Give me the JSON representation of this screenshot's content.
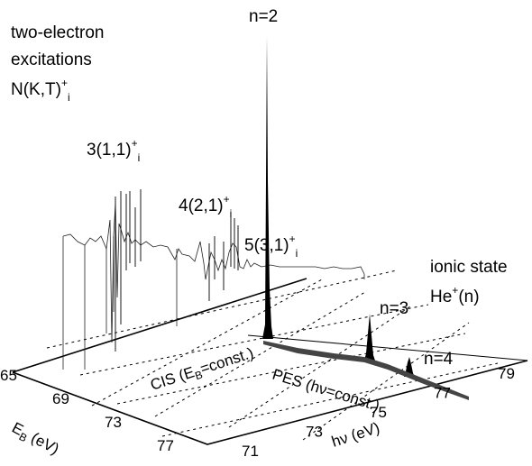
{
  "chart_data": {
    "type": "line",
    "x_axis": {
      "label": "hν (eV)",
      "ticks": [
        71,
        73,
        75,
        77,
        79
      ]
    },
    "y_axis": {
      "label": "E_B (eV)",
      "ticks": [
        65,
        69,
        73,
        77
      ]
    },
    "annotations": {
      "group_line1": "two-electron",
      "group_line2": "excitations",
      "group_line3": "N(K,T)",
      "group_sup": "+",
      "group_sub": "i",
      "res3": "3(1,1)",
      "res4": "4(2,1)",
      "res5": "5(3,1)",
      "res_sup": "+",
      "res_sub": "i",
      "ionic1": "ionic state",
      "ionic2": "He",
      "ionic2_sup": "+",
      "ionic2_tail": "(n)",
      "n2": "n=2",
      "n3": "n=3",
      "n4": "n=4",
      "cis_a": "CIS (E",
      "cis_b": "B",
      "cis_c": "=const.)",
      "pes": "PES (hν=const.)",
      "eb_a": "E",
      "eb_b": "B",
      "eb_c": " (eV)",
      "hv": "hν (eV)"
    },
    "peaks": [
      {
        "label": "n=2",
        "hv": 74.6,
        "eb": 70.0,
        "intensity": 1.0
      },
      {
        "label": "n=3",
        "hv": 77.0,
        "eb": 72.5,
        "intensity": 0.28
      },
      {
        "label": "n=4",
        "hv": 78.2,
        "eb": 74.5,
        "intensity": 0.08
      }
    ]
  }
}
